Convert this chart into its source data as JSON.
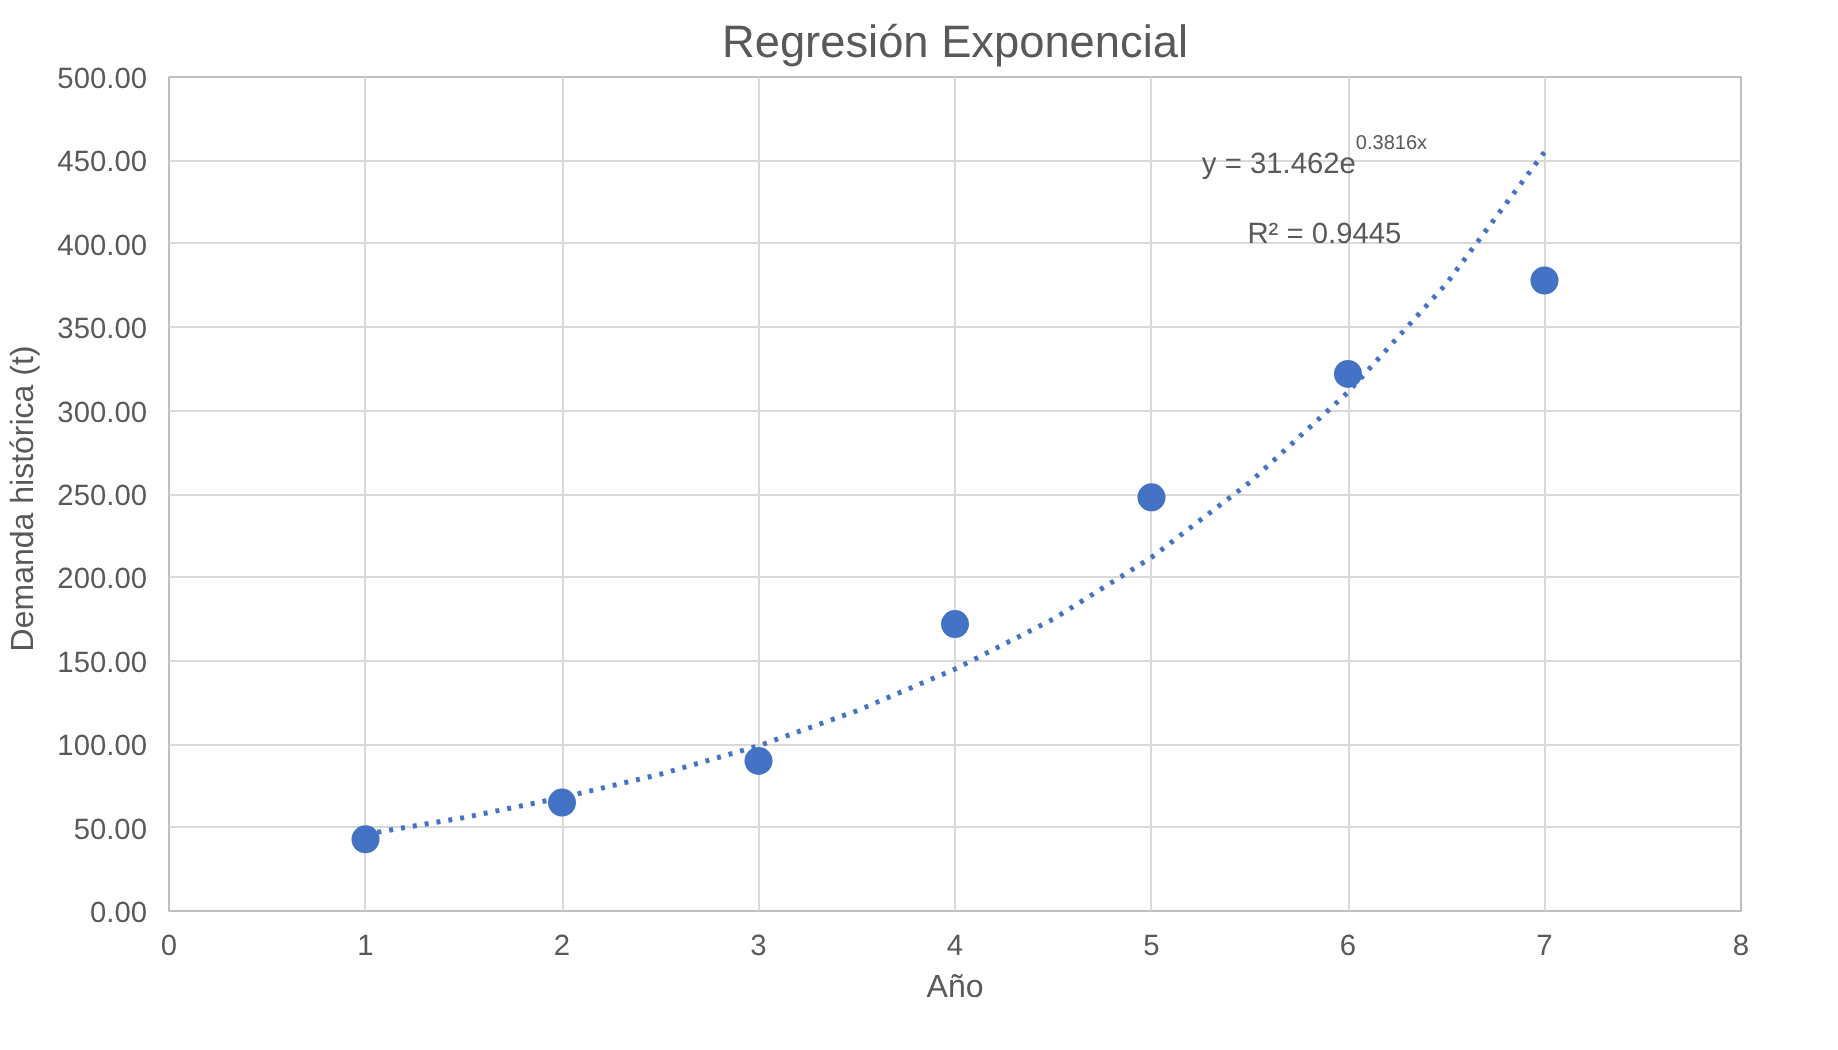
{
  "chart_data": {
    "type": "scatter",
    "title": "Regresión Exponencial",
    "xlabel": "Año",
    "ylabel": "Demanda histórica  (t)",
    "x": [
      1,
      2,
      3,
      4,
      5,
      6,
      7
    ],
    "series": [
      {
        "color": "#4472c4",
        "values": [
          43,
          65,
          90,
          172,
          248,
          322,
          378
        ],
        "marker": "circle"
      },
      {
        "type": "line",
        "color": "#4472c4",
        "line_style": "dotted",
        "x": [
          1,
          1.5,
          2,
          2.5,
          3,
          3.5,
          4,
          4.5,
          5,
          5.5,
          6,
          6.5,
          7
        ],
        "values": [
          46,
          56,
          68,
          82,
          99,
          120,
          145,
          175,
          212,
          257,
          311,
          376,
          455
        ]
      }
    ],
    "annotations": [
      "y = 31.462e$^{0.3816x}$",
      "R² = 0.9445"
    ],
    "xlim": [
      0,
      8
    ],
    "xticks": [
      0,
      1,
      2,
      3,
      4,
      5,
      6,
      7,
      8
    ],
    "ylim": [
      0,
      500
    ],
    "yticks": [
      {
        "value": 0,
        "label": "0.00"
      },
      {
        "value": 50,
        "label": "50.00"
      },
      {
        "value": 100,
        "label": "100.00"
      },
      {
        "value": 150,
        "label": "150.00"
      },
      {
        "value": 200,
        "label": "200.00"
      },
      {
        "value": 250,
        "label": "250.00"
      },
      {
        "value": 300,
        "label": "300.00"
      },
      {
        "value": 350,
        "label": "350.00"
      },
      {
        "value": 400,
        "label": "400.00"
      },
      {
        "value": 450,
        "label": "450.00"
      },
      {
        "value": 500,
        "label": "500.00"
      }
    ],
    "grid": true
  }
}
